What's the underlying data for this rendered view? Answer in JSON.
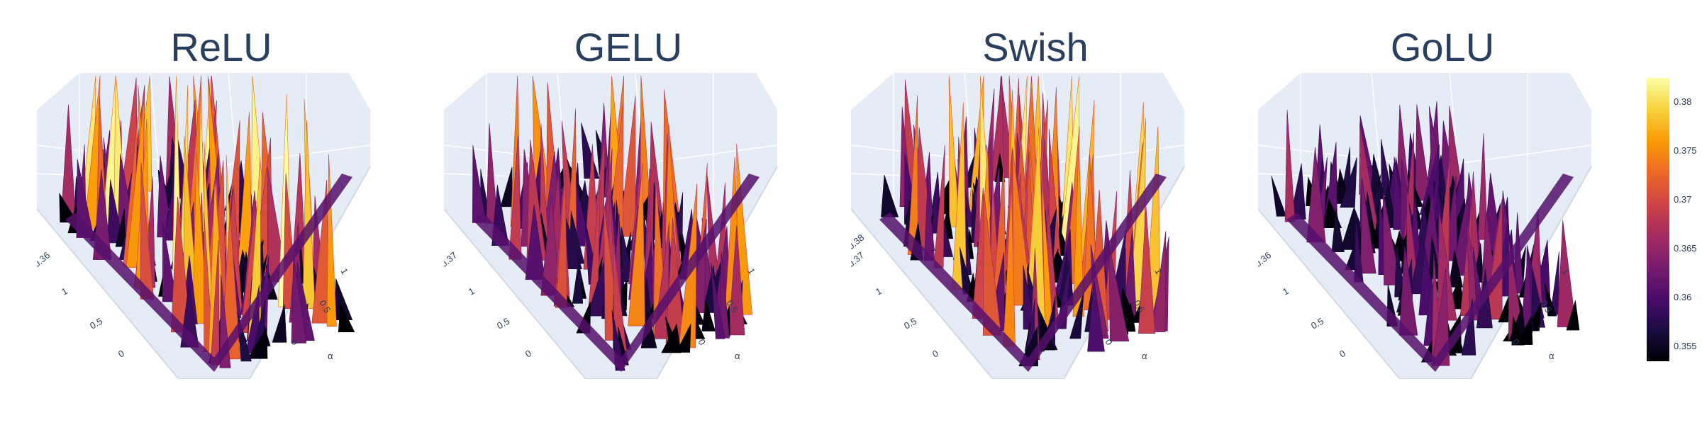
{
  "colors": {
    "title": "#2a3f5f",
    "scene_bg": "#e5ecf6",
    "grid": "#ffffff",
    "colorscale": [
      "#000004",
      "#1b0c41",
      "#4a0c6b",
      "#781c6d",
      "#a52c60",
      "#cf4446",
      "#ed6925",
      "#fb9b06",
      "#f7d13d",
      "#fcffa4"
    ]
  },
  "chart_data": [
    {
      "type": "surface",
      "title": "ReLU",
      "x_ticks": [
        "0",
        "0.5",
        "1"
      ],
      "y_ticks": [
        "0",
        "0.5",
        "1"
      ],
      "ylabel": "α",
      "z_tick": "0.36",
      "z_range": [
        0.3535,
        0.3825
      ],
      "peaks": "high"
    },
    {
      "type": "surface",
      "title": "GELU",
      "x_ticks": [
        "0",
        "0.5",
        "1"
      ],
      "y_ticks": [
        "0",
        "0.5",
        "1"
      ],
      "ylabel": "α",
      "z_tick": "0.37",
      "z_range": [
        0.3535,
        0.3825
      ],
      "peaks": "medium"
    },
    {
      "type": "surface",
      "title": "Swish",
      "x_ticks": [
        "0",
        "0.5",
        "1"
      ],
      "y_ticks": [
        "0",
        "0.5",
        "1"
      ],
      "ylabel": "α",
      "z_tick": "0.37",
      "z_tick_2": "0.38",
      "z_range": [
        0.3535,
        0.3825
      ],
      "peaks": "high"
    },
    {
      "type": "surface",
      "title": "GoLU",
      "x_ticks": [
        "0",
        "0.5",
        "1"
      ],
      "y_ticks": [
        "0",
        "0.5",
        "1"
      ],
      "ylabel": "α",
      "z_tick": "0.36",
      "z_range": [
        0.3535,
        0.3825
      ],
      "peaks": "low"
    }
  ],
  "colorbar": {
    "ticks": [
      "0.38",
      "0.375",
      "0.37",
      "0.365",
      "0.36",
      "0.355"
    ],
    "tick_values": [
      0.38,
      0.375,
      0.37,
      0.365,
      0.36,
      0.355
    ],
    "range": [
      0.3535,
      0.3825
    ]
  }
}
